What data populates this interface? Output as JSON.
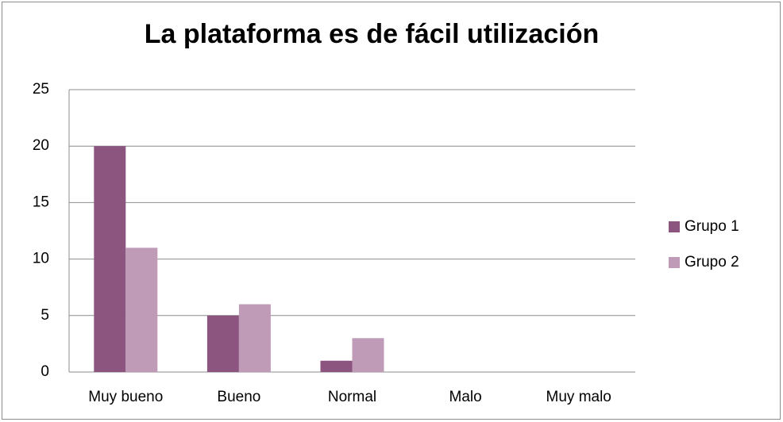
{
  "chart_data": {
    "type": "bar",
    "title": "La plataforma es de fácil utilización",
    "categories": [
      "Muy bueno",
      "Bueno",
      "Normal",
      "Malo",
      "Muy malo"
    ],
    "series": [
      {
        "name": "Grupo 1",
        "color": "#8b5580",
        "values": [
          20,
          5,
          1,
          0,
          0
        ]
      },
      {
        "name": "Grupo 2",
        "color": "#bf9bb8",
        "values": [
          11,
          6,
          3,
          0,
          0
        ]
      }
    ],
    "ylim": [
      0,
      25
    ],
    "yticks": [
      0,
      5,
      10,
      15,
      20,
      25
    ],
    "grid": true,
    "legend": "right"
  }
}
